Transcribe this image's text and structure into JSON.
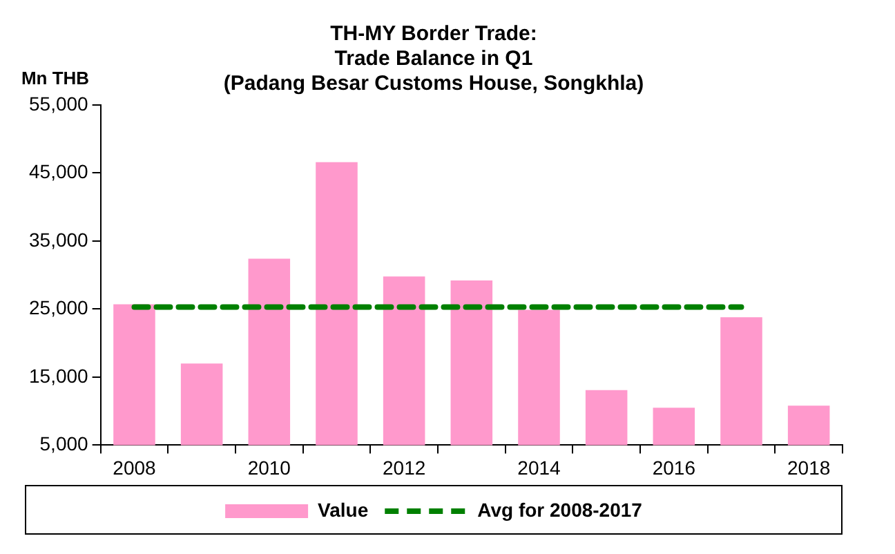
{
  "chart_data": {
    "type": "bar",
    "title": "TH-MY Border Trade:\nTrade Balance in Q1\n(Padang Besar Customs House, Songkhla)",
    "ylabel": "Mn THB",
    "categories": [
      "2008",
      null,
      "2010",
      null,
      "2012",
      null,
      "2014",
      null,
      "2016",
      null,
      "2018"
    ],
    "series": [
      {
        "name": "Value",
        "color": "#ff99cc",
        "values": [
          25700,
          17000,
          32400,
          46600,
          29800,
          29200,
          24900,
          13100,
          10500,
          23800,
          10800
        ]
      },
      {
        "name": "Avg for 2008-2017",
        "type": "line",
        "color": "#008000",
        "line_style": "dashed",
        "marker": "none",
        "values": [
          25300,
          25300,
          25300,
          25300,
          25300,
          25300,
          25300,
          25300,
          25300,
          25300,
          null
        ]
      }
    ],
    "ylim": [
      5000,
      55000
    ],
    "yticks": [
      {
        "value": 5000,
        "label": "5,000"
      },
      {
        "value": 15000,
        "label": "15,000"
      },
      {
        "value": 25000,
        "label": "25,000"
      },
      {
        "value": 35000,
        "label": "35,000"
      },
      {
        "value": 45000,
        "label": "45,000"
      },
      {
        "value": 55000,
        "label": "55,000"
      }
    ],
    "grid": false,
    "legend": "bottom"
  }
}
